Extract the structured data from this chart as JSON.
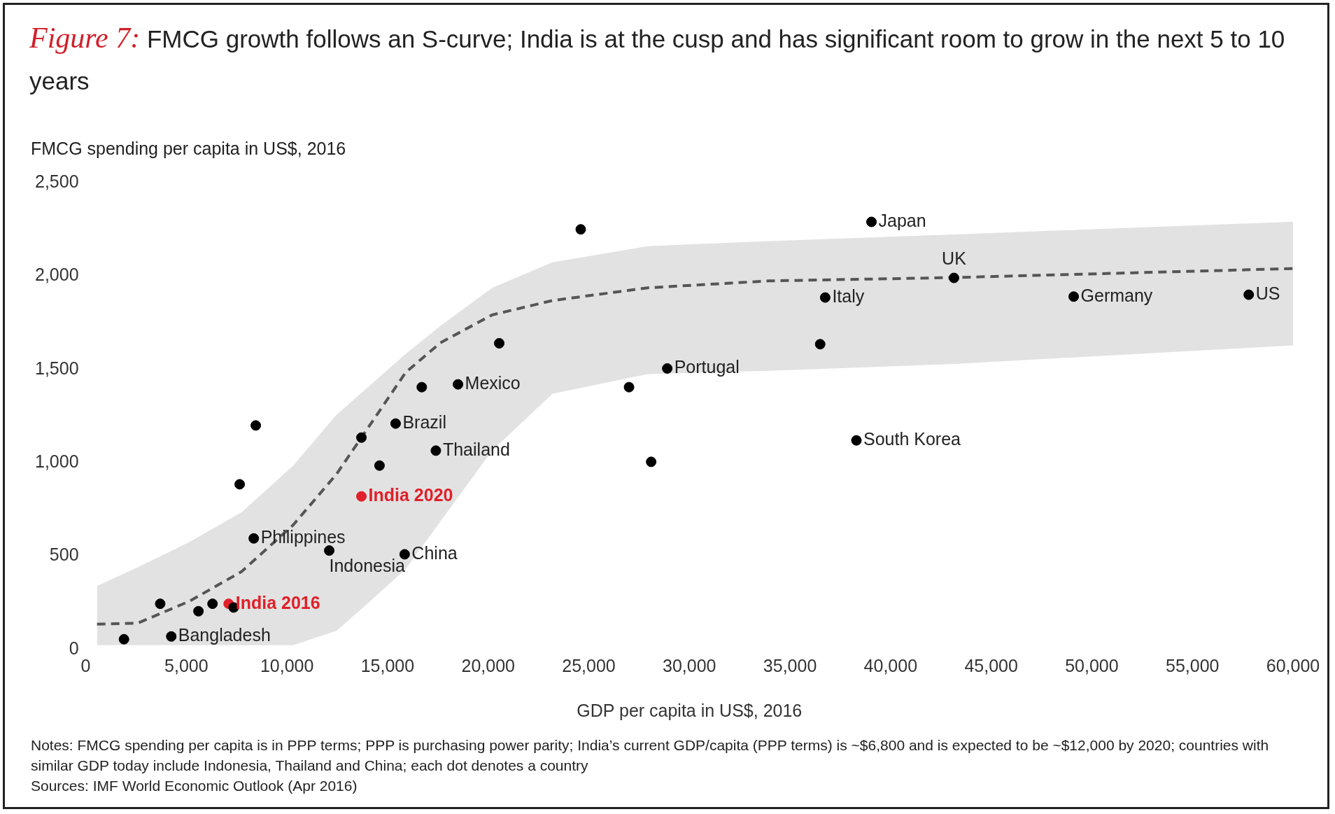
{
  "chart_data": {
    "type": "scatter",
    "title": "Figure 7: FMCG growth follows an S-curve; India is at the cusp and has significant room to grow in the next 5 to 10 years",
    "xlabel": "GDP per capita in US$, 2016",
    "ylabel": "FMCG spending per capita in US$, 2016",
    "xlim": [
      0,
      60000
    ],
    "ylim": [
      0,
      2500
    ],
    "xticks": [
      0,
      {
        "value": 5000,
        "label": "5,000"
      },
      {
        "value": 10000,
        "label": "10,000"
      },
      {
        "value": 15000,
        "label": "15,000"
      },
      {
        "value": 20000,
        "label": "20,000"
      },
      {
        "value": 25000,
        "label": "25,000"
      },
      {
        "value": 30000,
        "label": "30,000"
      },
      {
        "value": 35000,
        "label": "35,000"
      },
      {
        "value": 40000,
        "label": "40,000"
      },
      {
        "value": 45000,
        "label": "45,000"
      },
      {
        "value": 50000,
        "label": "50,000"
      },
      {
        "value": 55000,
        "label": "55,000"
      },
      {
        "value": 60000,
        "label": "60,000"
      }
    ],
    "yticks": [
      0,
      500,
      {
        "value": 1000,
        "label": "1,000"
      },
      {
        "value": 1500,
        "label": "1,500"
      },
      {
        "value": 2000,
        "label": "2,000"
      },
      {
        "value": 2500,
        "label": "2,500"
      }
    ],
    "grid": false,
    "legend": false,
    "marker": "circle",
    "series": [
      {
        "type": "line",
        "color": "#555555",
        "line_style": "dashed",
        "marker": "none",
        "x": [
          560,
          2580,
          5160,
          7740,
          10310,
          12460,
          14180,
          15900,
          17620,
          20200,
          23200,
          27930,
          33950,
          43150,
          60000
        ],
        "values": [
          136,
          141,
          259,
          417,
          667,
          939,
          1211,
          1484,
          1642,
          1792,
          1869,
          1937,
          1974,
          1992,
          2040
        ],
        "lower": [
          23,
          23,
          23,
          23,
          23,
          100,
          263,
          431,
          685,
          1066,
          1370,
          1475,
          1493,
          1529,
          1629
        ],
        "upper": [
          340,
          440,
          576,
          735,
          985,
          1257,
          1420,
          1583,
          1733,
          1937,
          2074,
          2160,
          2187,
          2223,
          2291
        ]
      },
      {
        "color": "#000000",
        "x": [
          1900,
          4250,
          3700,
          5600,
          6300,
          7350,
          8350,
          7650,
          8450,
          12100,
          13700,
          14600,
          15400,
          15850,
          16700,
          17400,
          18500,
          20550,
          24600,
          27000,
          28100,
          28900,
          36500,
          36750,
          38300,
          39050,
          43150,
          49100,
          57800
        ],
        "values": [
          55,
          70,
          245,
          205,
          245,
          225,
          595,
          885,
          1200,
          530,
          1135,
          985,
          1210,
          510,
          1405,
          1065,
          1420,
          1640,
          2250,
          1405,
          1005,
          1505,
          1635,
          1885,
          1120,
          2290,
          1990,
          1890,
          1900
        ]
      },
      {
        "name": "India 2016",
        "color": "#e0202a",
        "x": [
          7100
        ],
        "values": [
          245
        ]
      },
      {
        "name": "India 2020",
        "color": "#e0202a",
        "x": [
          13700
        ],
        "values": [
          820
        ]
      }
    ],
    "annotations": [
      {
        "text": "Bangladesh",
        "x": 4250,
        "y": 70
      },
      {
        "text": "Philippines",
        "x": 8350,
        "y": 595
      },
      {
        "text": "Indonesia",
        "x": 12100,
        "y": 530
      },
      {
        "text": "Brazil",
        "x": 15400,
        "y": 1210
      },
      {
        "text": "China",
        "x": 15850,
        "y": 510
      },
      {
        "text": "Thailand",
        "x": 17400,
        "y": 1065
      },
      {
        "text": "Mexico",
        "x": 18500,
        "y": 1420
      },
      {
        "text": "Portugal",
        "x": 28900,
        "y": 1505
      },
      {
        "text": "Italy",
        "x": 36750,
        "y": 1885
      },
      {
        "text": "South Korea",
        "x": 38300,
        "y": 1120
      },
      {
        "text": "Japan",
        "x": 39050,
        "y": 2290
      },
      {
        "text": "UK",
        "x": 43150,
        "y": 1990
      },
      {
        "text": "Germany",
        "x": 49100,
        "y": 1890
      },
      {
        "text": "US",
        "x": 57800,
        "y": 1900
      },
      "Notes: FMCG spending per capita is in PPP terms; PPP is purchasing power parity; India’s current GDP/capita (PPP terms) is ~$6,800 and is expected to be ~$12,000 by 2020; countries with similar GDP today include Indonesia, Thailand and China; each dot denotes a country",
      "Sources: IMF World Economic Outlook (Apr 2016)"
    ]
  }
}
